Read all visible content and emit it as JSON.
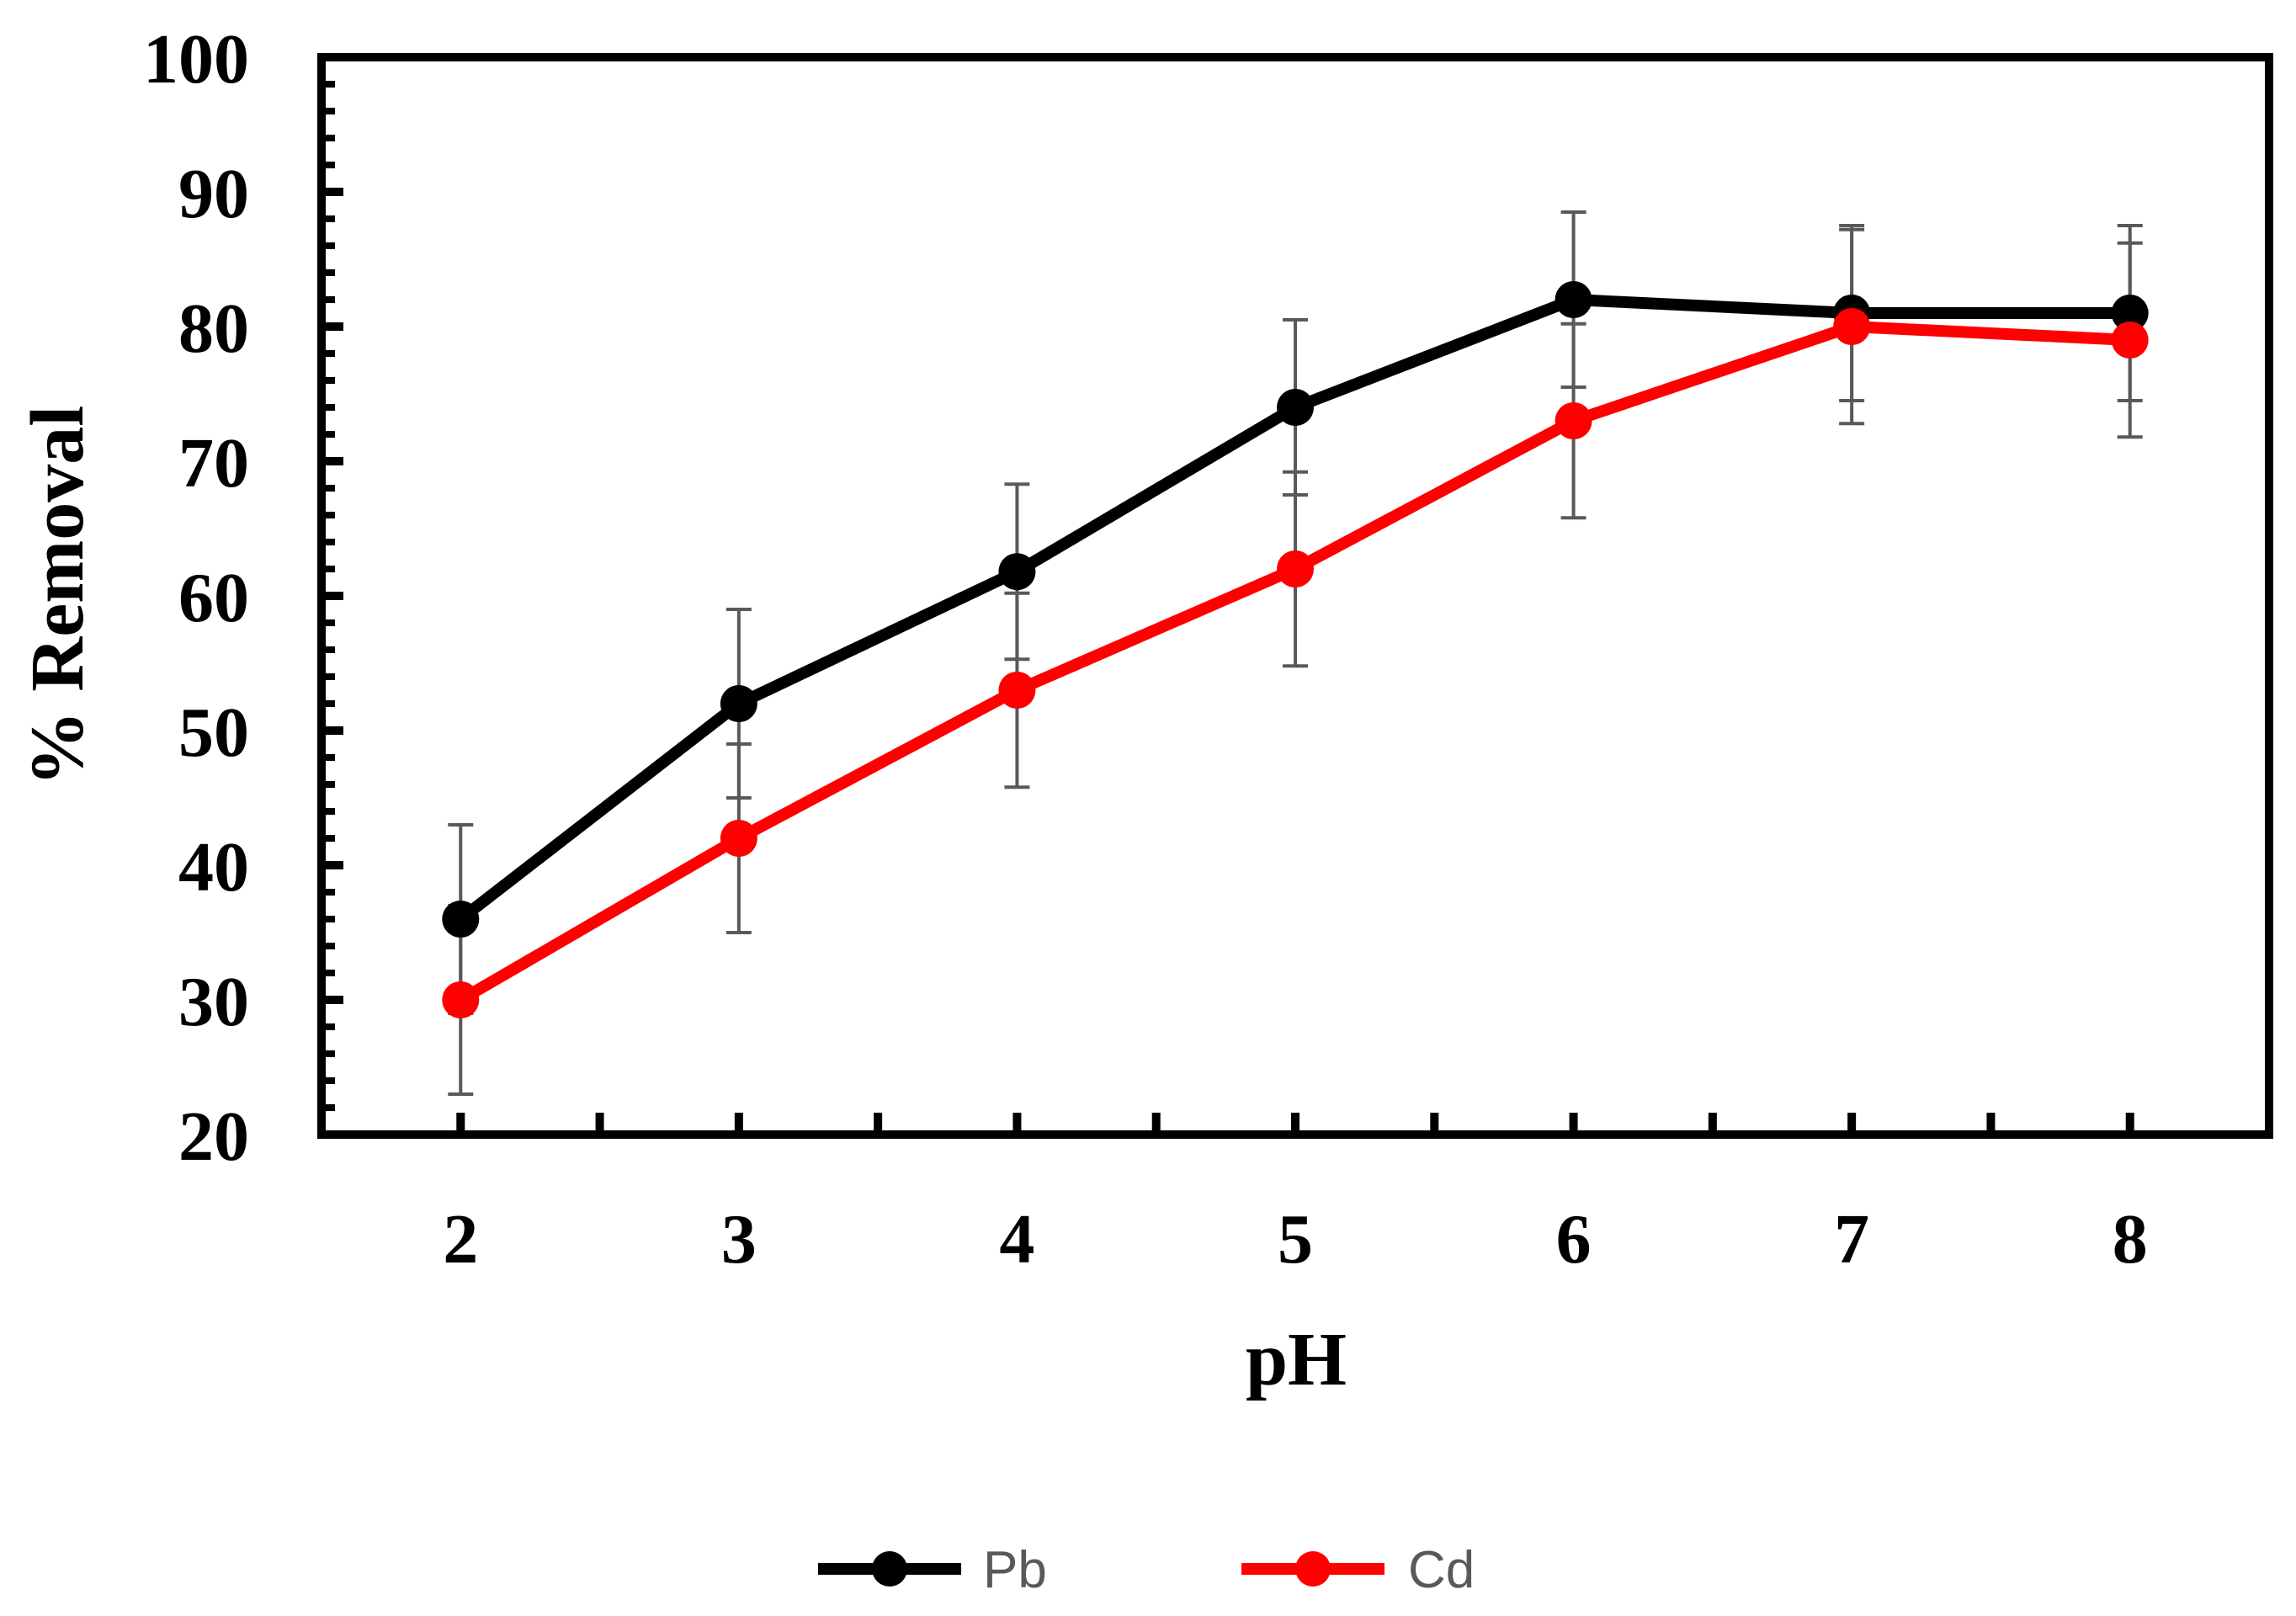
{
  "chart_data": {
    "type": "line",
    "title": "",
    "xlabel": "pH",
    "ylabel": "% Removal",
    "x": [
      2,
      3,
      4,
      5,
      6,
      7,
      8
    ],
    "x_tick_labels": [
      "2",
      "3",
      "4",
      "5",
      "6",
      "7",
      "8"
    ],
    "ylim": [
      20,
      100
    ],
    "y_ticks": [
      20,
      30,
      40,
      50,
      60,
      70,
      80,
      90,
      100
    ],
    "y_tick_labels": [
      "20",
      "30",
      "40",
      "50",
      "60",
      "70",
      "80",
      "90",
      "100"
    ],
    "grid": false,
    "legend_position": "bottom",
    "series": [
      {
        "name": "Pb",
        "color": "#000000",
        "values": [
          36,
          52,
          61.8,
          74,
          82,
          81,
          81
        ],
        "error": [
          7,
          7,
          6.5,
          6.5,
          6.5,
          6.5,
          6.5
        ]
      },
      {
        "name": "Cd",
        "color": "#ff0000",
        "values": [
          30,
          42,
          53,
          62,
          73,
          80,
          79
        ],
        "error": [
          7,
          7,
          7.2,
          7.2,
          7.2,
          7.2,
          7.2
        ]
      }
    ]
  }
}
